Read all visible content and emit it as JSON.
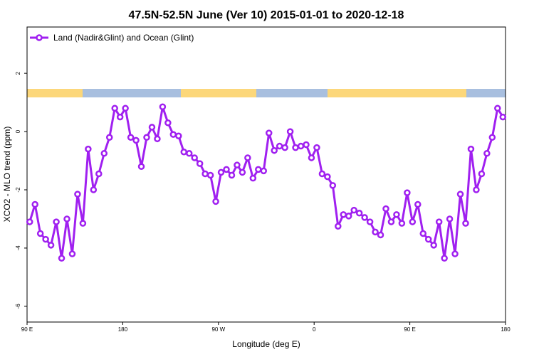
{
  "chart_data": {
    "type": "line",
    "title": "47.5N-52.5N June (Ver 10)   2015-01-01 to 2020-12-18",
    "x_label": "Longitude (deg E)",
    "y_label": "XCO2 - MLO trend (ppm)",
    "x": [
      92.5,
      97.5,
      102.5,
      107.5,
      112.5,
      117.5,
      122.5,
      127.5,
      132.5,
      137.5,
      142.5,
      147.5,
      152.5,
      157.5,
      162.5,
      167.5,
      172.5,
      177.5,
      182.5,
      187.5,
      192.5,
      197.5,
      202.5,
      207.5,
      212.5,
      217.5,
      222.5,
      227.5,
      232.5,
      237.5,
      242.5,
      247.5,
      252.5,
      257.5,
      262.5,
      267.5,
      272.5,
      277.5,
      282.5,
      287.5,
      292.5,
      297.5,
      302.5,
      307.5,
      312.5,
      317.5,
      322.5,
      327.5,
      332.5,
      337.5,
      342.5,
      347.5,
      352.5,
      357.5,
      362.5,
      367.5,
      372.5,
      377.5,
      382.5,
      387.5,
      392.5,
      397.5,
      402.5,
      407.5,
      412.5,
      417.5,
      422.5,
      427.5,
      432.5,
      437.5,
      442.5,
      447.5,
      452.5,
      457.5,
      462.5,
      467.5,
      472.5,
      477.5,
      482.5,
      487.5,
      492.5,
      497.5,
      502.5,
      507.5,
      512.5,
      517.5,
      522.5,
      527.5,
      532.5,
      537.5
    ],
    "series": [
      {
        "name": "Land (Nadir&Glint) and Ocean (Glint)",
        "color": "#a020f0",
        "values": [
          -3.1,
          -2.5,
          -3.5,
          -3.7,
          -3.9,
          -3.1,
          -4.35,
          -3.0,
          -4.2,
          -2.15,
          -3.15,
          -0.6,
          -2.0,
          -1.45,
          -0.75,
          -0.2,
          0.8,
          0.5,
          0.8,
          -0.2,
          -0.3,
          -1.2,
          -0.2,
          0.15,
          -0.25,
          0.85,
          0.3,
          -0.1,
          -0.15,
          -0.7,
          -0.75,
          -0.9,
          -1.1,
          -1.45,
          -1.5,
          -2.4,
          -1.4,
          -1.3,
          -1.5,
          -1.15,
          -1.4,
          -0.9,
          -1.6,
          -1.3,
          -1.35,
          -0.05,
          -0.65,
          -0.5,
          -0.55,
          0.0,
          -0.55,
          -0.5,
          -0.45,
          -0.9,
          -0.55,
          -1.45,
          -1.55,
          -1.85,
          -3.25,
          -2.85,
          -2.9,
          -2.7,
          -2.8,
          -2.95,
          -3.1,
          -3.45,
          -3.55,
          -2.65,
          -3.1,
          -2.85,
          -3.15,
          -2.1,
          -3.1,
          -2.5,
          -3.5,
          -3.7,
          -3.9,
          -3.1,
          -4.35,
          -3.0,
          -4.2,
          -2.15,
          -3.15,
          -0.6,
          -2.0,
          -1.45,
          -0.75,
          -0.2,
          0.8,
          0.5
        ]
      }
    ],
    "xlim": [
      90,
      540
    ],
    "xticks": [
      {
        "value": 90,
        "label": "90 E"
      },
      180,
      {
        "value": 270,
        "label": "90 W"
      },
      {
        "value": 360,
        "label": "0"
      },
      {
        "value": 450,
        "label": "90 E"
      },
      {
        "value": 540,
        "label": "180"
      }
    ],
    "ylim": [
      -6.54,
      3.59
    ],
    "yticks": [
      -6,
      -4,
      -2,
      0,
      2
    ],
    "legend": "top-left"
  }
}
